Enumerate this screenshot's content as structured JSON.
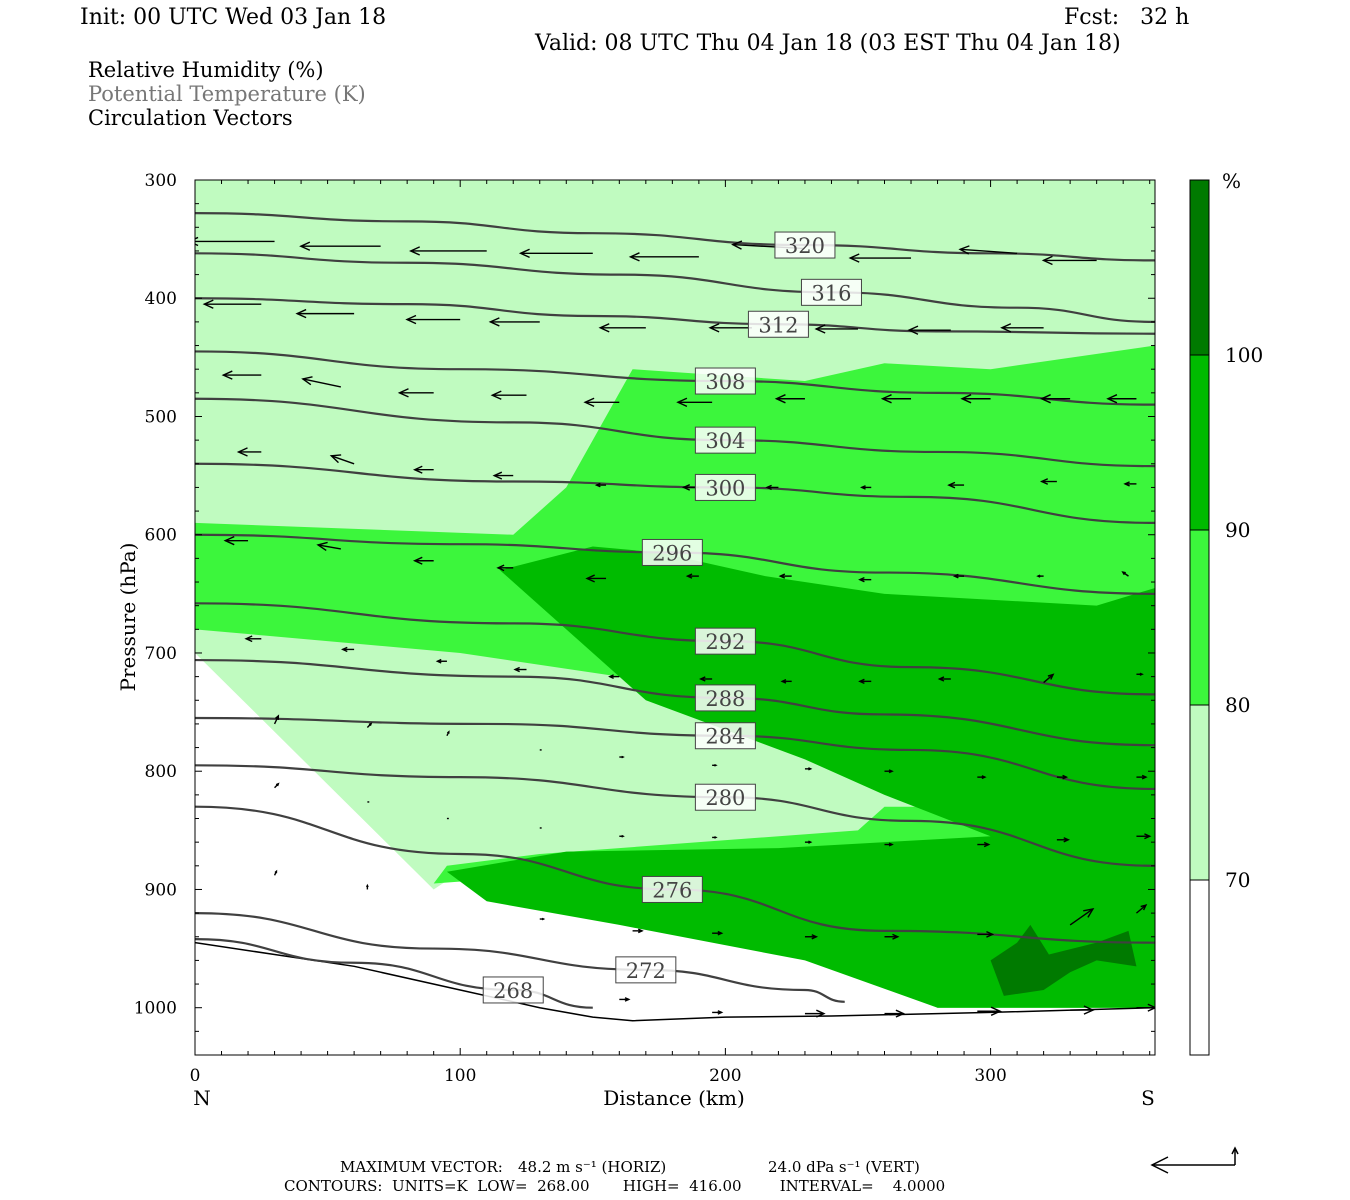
{
  "header": {
    "init": "Init: 00 UTC Wed 03 Jan 18",
    "fcst": "Fcst:   32 h",
    "valid": "Valid: 08 UTC Thu 04 Jan 18 (03 EST Thu 04 Jan 18)"
  },
  "fields": [
    "Relative Humidity (%)",
    "Potential Temperature (K)",
    "Circulation Vectors"
  ],
  "footer": {
    "max_vector_label": "MAXIMUM VECTOR:",
    "max_vector_horiz": "48.2 m s⁻¹ (HORIZ)",
    "max_vector_vert": "24.0 dPa s⁻¹ (VERT)",
    "contours": "CONTOURS:  UNITS=K  LOW=  268.00       HIGH=  416.00        INTERVAL=    4.0000"
  },
  "colors": {
    "rh_70_80": "#c0fbc0",
    "rh_80_90": "#3cf63c",
    "rh_90_100": "#00bb00",
    "rh_100": "#007a00",
    "theta_line": "#404040",
    "vector": "#000000"
  },
  "chart_data": {
    "type": "cross-section",
    "xlabel": "Distance (km)",
    "ylabel": "Pressure (hPa)",
    "xlim": [
      0,
      362
    ],
    "ylim": [
      1040,
      300
    ],
    "x_ticks": [
      0,
      100,
      200,
      300
    ],
    "y_ticks": [
      300,
      400,
      500,
      600,
      700,
      800,
      900,
      1000
    ],
    "end_labels": {
      "left": "N",
      "right": "S"
    },
    "colorbar": {
      "unit": "%",
      "levels": [
        70,
        80,
        90,
        100
      ],
      "level_labels": [
        "70",
        "80",
        "90",
        "100"
      ]
    },
    "terrain": [
      [
        0,
        945
      ],
      [
        30,
        955
      ],
      [
        60,
        965
      ],
      [
        100,
        985
      ],
      [
        130,
        1000
      ],
      [
        150,
        1008
      ],
      [
        165,
        1011
      ],
      [
        200,
        1008
      ],
      [
        240,
        1007
      ],
      [
        300,
        1004
      ],
      [
        362,
        1000
      ]
    ],
    "theta_contours": [
      {
        "value": 320,
        "label": "320",
        "points": [
          [
            0,
            328
          ],
          [
            80,
            335
          ],
          [
            150,
            345
          ],
          [
            230,
            355
          ],
          [
            300,
            362
          ],
          [
            362,
            368
          ]
        ]
      },
      {
        "value": 316,
        "label": "316",
        "points": [
          [
            0,
            362
          ],
          [
            80,
            370
          ],
          [
            160,
            380
          ],
          [
            240,
            395
          ],
          [
            310,
            408
          ],
          [
            362,
            420
          ]
        ]
      },
      {
        "value": 312,
        "label": "312",
        "points": [
          [
            0,
            400
          ],
          [
            80,
            405
          ],
          [
            150,
            415
          ],
          [
            220,
            422
          ],
          [
            280,
            428
          ],
          [
            362,
            430
          ]
        ]
      },
      {
        "value": 308,
        "label": "308",
        "points": [
          [
            0,
            445
          ],
          [
            100,
            460
          ],
          [
            200,
            470
          ],
          [
            280,
            480
          ],
          [
            362,
            490
          ]
        ]
      },
      {
        "value": 304,
        "label": "304",
        "points": [
          [
            0,
            485
          ],
          [
            120,
            505
          ],
          [
            200,
            520
          ],
          [
            280,
            530
          ],
          [
            362,
            542
          ]
        ]
      },
      {
        "value": 300,
        "label": "300",
        "points": [
          [
            0,
            540
          ],
          [
            120,
            555
          ],
          [
            200,
            560
          ],
          [
            270,
            568
          ],
          [
            362,
            590
          ]
        ]
      },
      {
        "value": 296,
        "label": "296",
        "points": [
          [
            0,
            600
          ],
          [
            100,
            608
          ],
          [
            180,
            615
          ],
          [
            260,
            632
          ],
          [
            362,
            650
          ]
        ]
      },
      {
        "value": 292,
        "label": "292",
        "points": [
          [
            0,
            658
          ],
          [
            120,
            675
          ],
          [
            200,
            690
          ],
          [
            270,
            712
          ],
          [
            362,
            735
          ]
        ]
      },
      {
        "value": 288,
        "label": "288",
        "points": [
          [
            0,
            706
          ],
          [
            120,
            720
          ],
          [
            200,
            738
          ],
          [
            260,
            752
          ],
          [
            362,
            778
          ]
        ]
      },
      {
        "value": 284,
        "label": "284",
        "points": [
          [
            0,
            755
          ],
          [
            110,
            760
          ],
          [
            200,
            770
          ],
          [
            270,
            782
          ],
          [
            362,
            815
          ]
        ]
      },
      {
        "value": 280,
        "label": "280",
        "points": [
          [
            0,
            795
          ],
          [
            100,
            805
          ],
          [
            200,
            822
          ],
          [
            270,
            842
          ],
          [
            362,
            880
          ]
        ]
      },
      {
        "value": 276,
        "label": "276",
        "points": [
          [
            0,
            830
          ],
          [
            100,
            870
          ],
          [
            180,
            900
          ],
          [
            260,
            935
          ],
          [
            362,
            945
          ]
        ]
      },
      {
        "value": 272,
        "label": "272",
        "points": [
          [
            0,
            920
          ],
          [
            90,
            950
          ],
          [
            170,
            968
          ],
          [
            230,
            985
          ],
          [
            245,
            995
          ]
        ]
      },
      {
        "value": 268,
        "label": "268",
        "points": [
          [
            0,
            942
          ],
          [
            60,
            962
          ],
          [
            120,
            985
          ],
          [
            150,
            1000
          ]
        ]
      }
    ],
    "rh_regions": [
      {
        "min": 70,
        "polygon": [
          [
            0,
            300
          ],
          [
            362,
            300
          ],
          [
            362,
            1000
          ],
          [
            280,
            1000
          ],
          [
            250,
            960
          ],
          [
            200,
            900
          ],
          [
            130,
            880
          ],
          [
            100,
            885
          ],
          [
            90,
            900
          ],
          [
            0,
            700
          ]
        ]
      },
      {
        "min": 80,
        "polygon": [
          [
            0,
            590
          ],
          [
            120,
            600
          ],
          [
            140,
            560
          ],
          [
            165,
            460
          ],
          [
            230,
            470
          ],
          [
            260,
            455
          ],
          [
            300,
            460
          ],
          [
            362,
            440
          ],
          [
            362,
            1000
          ],
          [
            280,
            1000
          ],
          [
            230,
            950
          ],
          [
            170,
            905
          ],
          [
            120,
            890
          ],
          [
            90,
            895
          ],
          [
            95,
            880
          ],
          [
            130,
            870
          ],
          [
            250,
            850
          ],
          [
            260,
            830
          ],
          [
            300,
            830
          ],
          [
            220,
            780
          ],
          [
            160,
            720
          ],
          [
            100,
            700
          ],
          [
            0,
            680
          ]
        ]
      },
      {
        "min": 90,
        "polygon": [
          [
            115,
            630
          ],
          [
            150,
            610
          ],
          [
            175,
            615
          ],
          [
            215,
            635
          ],
          [
            260,
            650
          ],
          [
            300,
            655
          ],
          [
            340,
            660
          ],
          [
            362,
            645
          ],
          [
            362,
            1000
          ],
          [
            280,
            1000
          ],
          [
            230,
            960
          ],
          [
            160,
            930
          ],
          [
            110,
            910
          ],
          [
            95,
            885
          ],
          [
            140,
            868
          ],
          [
            220,
            865
          ],
          [
            300,
            855
          ],
          [
            260,
            820
          ],
          [
            230,
            790
          ],
          [
            170,
            740
          ],
          [
            145,
            690
          ]
        ]
      },
      {
        "min": 100,
        "polygon": [
          [
            300,
            960
          ],
          [
            310,
            945
          ],
          [
            315,
            930
          ],
          [
            322,
            955
          ],
          [
            340,
            945
          ],
          [
            352,
            935
          ],
          [
            355,
            965
          ],
          [
            340,
            960
          ],
          [
            330,
            970
          ],
          [
            320,
            985
          ],
          [
            305,
            990
          ]
        ]
      }
    ],
    "vectors": [
      {
        "x": 30,
        "p": 352,
        "u": -45,
        "w": 0
      },
      {
        "x": 70,
        "p": 356,
        "u": -42,
        "w": 0
      },
      {
        "x": 110,
        "p": 360,
        "u": -40,
        "w": 0
      },
      {
        "x": 150,
        "p": 362,
        "u": -38,
        "w": 0
      },
      {
        "x": 190,
        "p": 365,
        "u": -36,
        "w": 0
      },
      {
        "x": 230,
        "p": 358,
        "u": -38,
        "w": 1
      },
      {
        "x": 270,
        "p": 366,
        "u": -32,
        "w": 0
      },
      {
        "x": 310,
        "p": 362,
        "u": -30,
        "w": 1
      },
      {
        "x": 340,
        "p": 368,
        "u": -28,
        "w": 0
      },
      {
        "x": 25,
        "p": 405,
        "u": -30,
        "w": 0
      },
      {
        "x": 60,
        "p": 413,
        "u": -30,
        "w": 0
      },
      {
        "x": 100,
        "p": 418,
        "u": -28,
        "w": 0
      },
      {
        "x": 130,
        "p": 420,
        "u": -26,
        "w": 0
      },
      {
        "x": 170,
        "p": 425,
        "u": -24,
        "w": 0
      },
      {
        "x": 210,
        "p": 425,
        "u": -22,
        "w": 0
      },
      {
        "x": 250,
        "p": 426,
        "u": -22,
        "w": 0
      },
      {
        "x": 285,
        "p": 427,
        "u": -22,
        "w": 0
      },
      {
        "x": 320,
        "p": 425,
        "u": -22,
        "w": 0
      },
      {
        "x": 25,
        "p": 465,
        "u": -20,
        "w": 0
      },
      {
        "x": 55,
        "p": 475,
        "u": -20,
        "w": 2
      },
      {
        "x": 90,
        "p": 480,
        "u": -18,
        "w": 0
      },
      {
        "x": 125,
        "p": 482,
        "u": -18,
        "w": 0
      },
      {
        "x": 160,
        "p": 488,
        "u": -18,
        "w": 0
      },
      {
        "x": 195,
        "p": 488,
        "u": -18,
        "w": 0
      },
      {
        "x": 230,
        "p": 485,
        "u": -15,
        "w": 0
      },
      {
        "x": 270,
        "p": 485,
        "u": -15,
        "w": 0
      },
      {
        "x": 300,
        "p": 485,
        "u": -15,
        "w": 0
      },
      {
        "x": 330,
        "p": 485,
        "u": -15,
        "w": 0
      },
      {
        "x": 355,
        "p": 485,
        "u": -15,
        "w": 0
      },
      {
        "x": 25,
        "p": 530,
        "u": -12,
        "w": 0
      },
      {
        "x": 60,
        "p": 540,
        "u": -12,
        "w": 2
      },
      {
        "x": 90,
        "p": 545,
        "u": -10,
        "w": 0
      },
      {
        "x": 120,
        "p": 550,
        "u": -10,
        "w": 0
      },
      {
        "x": 155,
        "p": 558,
        "u": -5,
        "w": 0
      },
      {
        "x": 190,
        "p": 560,
        "u": -8,
        "w": 0
      },
      {
        "x": 220,
        "p": 560,
        "u": -6,
        "w": 0
      },
      {
        "x": 255,
        "p": 560,
        "u": -5,
        "w": 0
      },
      {
        "x": 290,
        "p": 558,
        "u": -8,
        "w": 0
      },
      {
        "x": 325,
        "p": 555,
        "u": -8,
        "w": 0
      },
      {
        "x": 355,
        "p": 557,
        "u": -6,
        "w": 0
      },
      {
        "x": 20,
        "p": 605,
        "u": -12,
        "w": 0
      },
      {
        "x": 55,
        "p": 612,
        "u": -12,
        "w": 1
      },
      {
        "x": 90,
        "p": 622,
        "u": -10,
        "w": 0
      },
      {
        "x": 120,
        "p": 628,
        "u": -8,
        "w": 0
      },
      {
        "x": 155,
        "p": 637,
        "u": -10,
        "w": 0
      },
      {
        "x": 190,
        "p": 635,
        "u": -6,
        "w": 0
      },
      {
        "x": 225,
        "p": 635,
        "u": -6,
        "w": 0
      },
      {
        "x": 255,
        "p": 638,
        "u": -6,
        "w": 0
      },
      {
        "x": 290,
        "p": 635,
        "u": -5,
        "w": 0
      },
      {
        "x": 320,
        "p": 635,
        "u": -3,
        "w": 0
      },
      {
        "x": 352,
        "p": 635,
        "u": -3,
        "w": 1
      },
      {
        "x": 25,
        "p": 688,
        "u": -8,
        "w": 0
      },
      {
        "x": 60,
        "p": 697,
        "u": -6,
        "w": 0
      },
      {
        "x": 95,
        "p": 707,
        "u": -5,
        "w": 0
      },
      {
        "x": 125,
        "p": 714,
        "u": -6,
        "w": 0
      },
      {
        "x": 160,
        "p": 720,
        "u": -5,
        "w": 0
      },
      {
        "x": 195,
        "p": 722,
        "u": -6,
        "w": 0
      },
      {
        "x": 225,
        "p": 724,
        "u": -5,
        "w": 0
      },
      {
        "x": 255,
        "p": 724,
        "u": -6,
        "w": 0
      },
      {
        "x": 285,
        "p": 722,
        "u": -6,
        "w": 0
      },
      {
        "x": 320,
        "p": 725,
        "u": 5,
        "w": 2
      },
      {
        "x": 355,
        "p": 718,
        "u": 3,
        "w": 0
      },
      {
        "x": 30,
        "p": 760,
        "u": 2,
        "w": 2
      },
      {
        "x": 65,
        "p": 763,
        "u": 2,
        "w": 1
      },
      {
        "x": 95,
        "p": 770,
        "u": 1,
        "w": 1
      },
      {
        "x": 130,
        "p": 782,
        "u": 1,
        "w": 0
      },
      {
        "x": 160,
        "p": 788,
        "u": 2,
        "w": 0
      },
      {
        "x": 195,
        "p": 795,
        "u": 2,
        "w": 0
      },
      {
        "x": 230,
        "p": 798,
        "u": 3,
        "w": 0
      },
      {
        "x": 260,
        "p": 800,
        "u": 4,
        "w": 0
      },
      {
        "x": 295,
        "p": 805,
        "u": 4,
        "w": 0
      },
      {
        "x": 325,
        "p": 805,
        "u": 5,
        "w": 0
      },
      {
        "x": 355,
        "p": 805,
        "u": 5,
        "w": 0
      },
      {
        "x": 30,
        "p": 814,
        "u": 2,
        "w": 1
      },
      {
        "x": 65,
        "p": 826,
        "u": 1,
        "w": 0
      },
      {
        "x": 95,
        "p": 840,
        "u": 1,
        "w": 0
      },
      {
        "x": 130,
        "p": 848,
        "u": 1,
        "w": 0
      },
      {
        "x": 160,
        "p": 855,
        "u": 2,
        "w": 0
      },
      {
        "x": 195,
        "p": 856,
        "u": 2,
        "w": 0
      },
      {
        "x": 230,
        "p": 860,
        "u": 3,
        "w": 0
      },
      {
        "x": 260,
        "p": 862,
        "u": 4,
        "w": 0
      },
      {
        "x": 295,
        "p": 862,
        "u": 6,
        "w": 0
      },
      {
        "x": 325,
        "p": 858,
        "u": 6,
        "w": 0
      },
      {
        "x": 355,
        "p": 855,
        "u": 7,
        "w": 0
      },
      {
        "x": 30,
        "p": 888,
        "u": 1,
        "w": 1
      },
      {
        "x": 65,
        "p": 900,
        "u": 0,
        "w": 1
      },
      {
        "x": 130,
        "p": 925,
        "u": 2,
        "w": 0
      },
      {
        "x": 165,
        "p": 935,
        "u": 5,
        "w": 0
      },
      {
        "x": 195,
        "p": 937,
        "u": 5,
        "w": 0
      },
      {
        "x": 230,
        "p": 940,
        "u": 6,
        "w": 0
      },
      {
        "x": 260,
        "p": 940,
        "u": 7,
        "w": 0
      },
      {
        "x": 295,
        "p": 938,
        "u": 8,
        "w": 0
      },
      {
        "x": 330,
        "p": 930,
        "u": 12,
        "w": 4
      },
      {
        "x": 355,
        "p": 920,
        "u": 5,
        "w": 2
      },
      {
        "x": 160,
        "p": 993,
        "u": 5,
        "w": 0
      },
      {
        "x": 195,
        "p": 1004,
        "u": 5,
        "w": 0
      },
      {
        "x": 230,
        "p": 1005,
        "u": 10,
        "w": 0
      },
      {
        "x": 260,
        "p": 1005,
        "u": 10,
        "w": 0
      },
      {
        "x": 295,
        "p": 1003,
        "u": 12,
        "w": 0
      },
      {
        "x": 330,
        "p": 1002,
        "u": 12,
        "w": 0
      },
      {
        "x": 355,
        "p": 1000,
        "u": 10,
        "w": 0
      }
    ]
  }
}
